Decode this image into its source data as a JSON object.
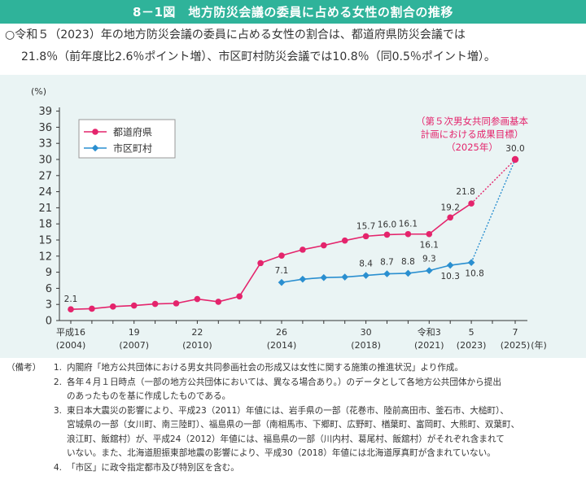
{
  "title": "8－1図　地方防災会議の委員に占める女性の割合の推移",
  "summary": {
    "line1": "○令和５（2023）年の地方防災会議の委員に占める女性の割合は、都道府県防災会議では",
    "line2": "21.8％（前年度比2.6％ポイント増）、市区町村防災会議では10.8％（同0.5％ポイント増）。"
  },
  "chart_data": {
    "type": "line",
    "ylabel": "(%)",
    "xlabel_suffix": "(年)",
    "ylim": [
      0,
      39
    ],
    "yticks": [
      0,
      3,
      6,
      9,
      12,
      15,
      18,
      21,
      24,
      27,
      30,
      33,
      36,
      39
    ],
    "x": [
      2004,
      2005,
      2006,
      2007,
      2008,
      2009,
      2010,
      2011,
      2012,
      2013,
      2014,
      2015,
      2016,
      2017,
      2018,
      2019,
      2020,
      2021,
      2022,
      2023,
      2025
    ],
    "xticks": [
      {
        "x": 2004,
        "line1": "平成16",
        "line2": "(2004)"
      },
      {
        "x": 2007,
        "line1": "19",
        "line2": "(2007)"
      },
      {
        "x": 2010,
        "line1": "22",
        "line2": "(2010)"
      },
      {
        "x": 2014,
        "line1": "26",
        "line2": "(2014)"
      },
      {
        "x": 2018,
        "line1": "30",
        "line2": "(2018)"
      },
      {
        "x": 2021,
        "line1": "令和3",
        "line2": "(2021)"
      },
      {
        "x": 2023,
        "line1": "5",
        "line2": "(2023)"
      },
      {
        "x": 2025,
        "line1": "7",
        "line2": "(2025)"
      }
    ],
    "series": [
      {
        "name": "都道府県",
        "color": "#e4246c",
        "marker": "circle",
        "points": [
          {
            "x": 2004,
            "y": 2.1,
            "label": "2.1"
          },
          {
            "x": 2005,
            "y": 2.2
          },
          {
            "x": 2006,
            "y": 2.6
          },
          {
            "x": 2007,
            "y": 2.8
          },
          {
            "x": 2008,
            "y": 3.1
          },
          {
            "x": 2009,
            "y": 3.2
          },
          {
            "x": 2010,
            "y": 4.0
          },
          {
            "x": 2011,
            "y": 3.5
          },
          {
            "x": 2012,
            "y": 4.5
          },
          {
            "x": 2013,
            "y": 10.7
          },
          {
            "x": 2014,
            "y": 12.1
          },
          {
            "x": 2015,
            "y": 13.2
          },
          {
            "x": 2016,
            "y": 14.0
          },
          {
            "x": 2017,
            "y": 14.9
          },
          {
            "x": 2018,
            "y": 15.7,
            "label": "15.7"
          },
          {
            "x": 2019,
            "y": 16.0,
            "label": "16.0"
          },
          {
            "x": 2020,
            "y": 16.1,
            "label": "16.1"
          },
          {
            "x": 2021,
            "y": 16.1,
            "label": "16.1"
          },
          {
            "x": 2022,
            "y": 19.2,
            "label": "19.2"
          },
          {
            "x": 2023,
            "y": 21.8,
            "label": "21.8"
          }
        ]
      },
      {
        "name": "市区町村",
        "color": "#2a8fd0",
        "marker": "diamond",
        "points": [
          {
            "x": 2014,
            "y": 7.1,
            "label": "7.1"
          },
          {
            "x": 2015,
            "y": 7.7
          },
          {
            "x": 2016,
            "y": 8.0
          },
          {
            "x": 2017,
            "y": 8.1
          },
          {
            "x": 2018,
            "y": 8.4,
            "label": "8.4"
          },
          {
            "x": 2019,
            "y": 8.7,
            "label": "8.7"
          },
          {
            "x": 2020,
            "y": 8.8,
            "label": "8.8"
          },
          {
            "x": 2021,
            "y": 9.3,
            "label": "9.3"
          },
          {
            "x": 2022,
            "y": 10.3,
            "label": "10.3"
          },
          {
            "x": 2023,
            "y": 10.8,
            "label": "10.8"
          }
        ]
      }
    ],
    "target": {
      "x": 2025,
      "y": 30.0,
      "label": "30.0",
      "annotation": [
        "（第５次男女共同参画基本",
        "計画における成果目標）",
        "（2025年）"
      ],
      "annotation_color": "#e4246c"
    },
    "legend_position": "top-left",
    "grid": false
  },
  "notes": {
    "head": "（備考）",
    "items": [
      {
        "num": "1.",
        "lines": [
          "内閣府「地方公共団体における男女共同参画社会の形成又は女性に関する施策の推進状況」より作成。"
        ]
      },
      {
        "num": "2.",
        "lines": [
          "各年４月１日時点（一部の地方公共団体においては、異なる場合あり。）のデータとして各地方公共団体から提出",
          "のあったものを基に作成したものである。"
        ]
      },
      {
        "num": "3.",
        "lines": [
          "東日本大震災の影響により、平成23（2011）年値には、岩手県の一部（花巻市、陸前高田市、釜石市、大槌町）、",
          "宮城県の一部（女川町、南三陸町）、福島県の一部（南相馬市、下郷町、広野町、楢葉町、富岡町、大熊町、双葉町、",
          "浪江町、飯舘村）が、平成24（2012）年値には、福島県の一部（川内村、葛尾村、飯舘村）がそれぞれ含まれて",
          "いない。また、北海道胆振東部地震の影響により、平成30（2018）年値には北海道厚真町が含まれていない。"
        ]
      },
      {
        "num": "4.",
        "lines": [
          "「市区」に政令指定都市及び特別区を含む。"
        ]
      }
    ]
  }
}
